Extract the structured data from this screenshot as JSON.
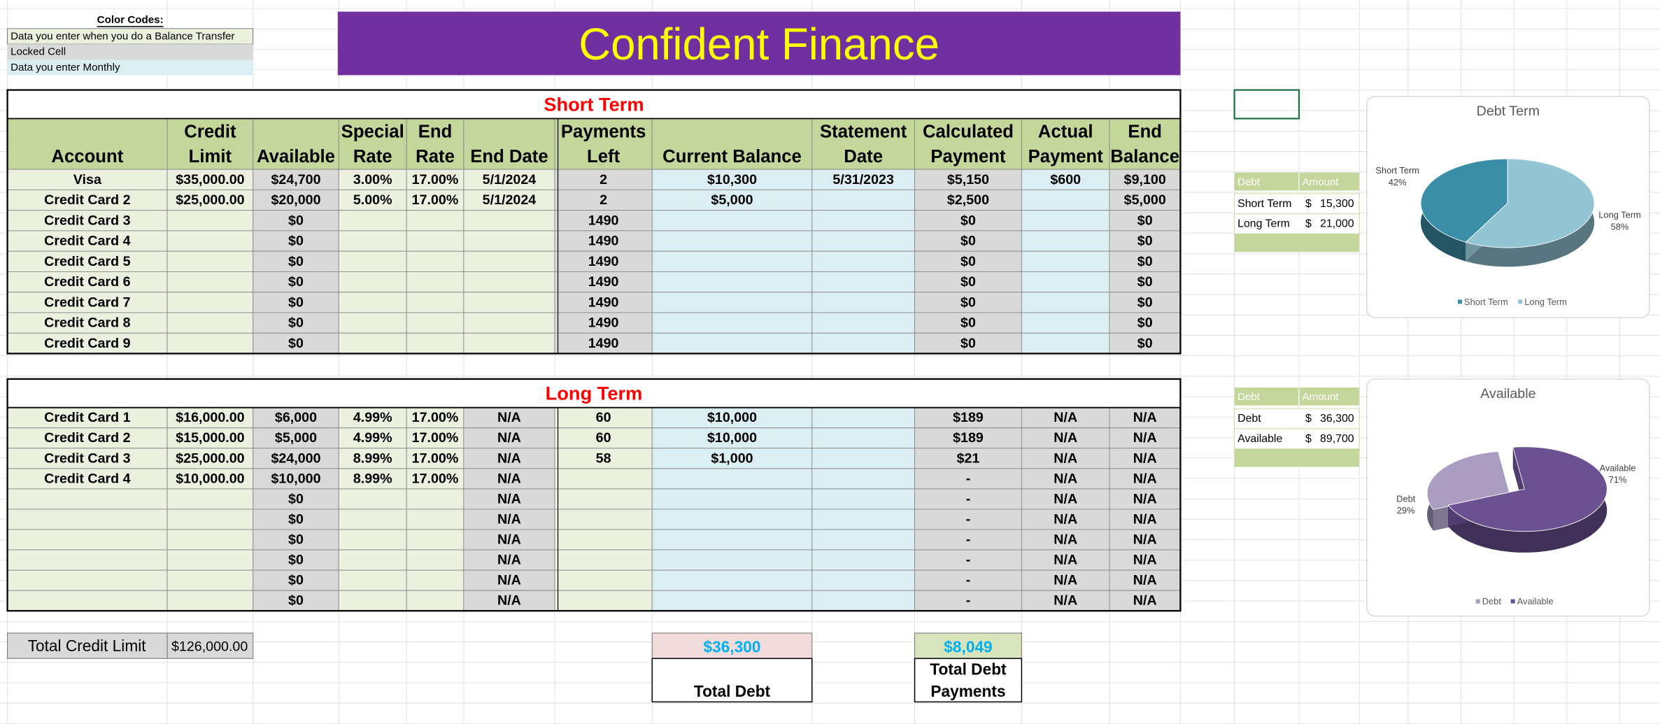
{
  "color_codes": {
    "title": "Color Codes:",
    "items": [
      "Data you enter when you do a Balance Transfer",
      "Locked Cell",
      "Data you enter Monthly"
    ]
  },
  "header": {
    "title": "Confident Finance"
  },
  "short_term": {
    "title": "Short Term",
    "columns": [
      [
        "Account"
      ],
      [
        "Credit",
        "Limit"
      ],
      [
        "Available"
      ],
      [
        "Special",
        "Rate"
      ],
      [
        "End",
        "Rate"
      ],
      [
        "End Date"
      ],
      [
        "Payments",
        "Left"
      ],
      [
        "Current Balance"
      ],
      [
        "Statement",
        "Date"
      ],
      [
        "Calculated",
        "Payment"
      ],
      [
        "Actual",
        "Payment"
      ],
      [
        "End",
        "Balance"
      ]
    ],
    "rows": [
      [
        "Visa",
        "$35,000.00",
        "$24,700",
        "3.00%",
        "17.00%",
        "5/1/2024",
        "2",
        "$10,300",
        "5/31/2023",
        "$5,150",
        "$600",
        "$9,100"
      ],
      [
        "Credit Card 2",
        "$25,000.00",
        "$20,000",
        "5.00%",
        "17.00%",
        "5/1/2024",
        "2",
        "$5,000",
        null,
        "$2,500",
        null,
        "$5,000"
      ],
      [
        "Credit Card 3",
        null,
        "$0",
        null,
        null,
        null,
        "1490",
        null,
        null,
        "$0",
        null,
        "$0"
      ],
      [
        "Credit Card 4",
        null,
        "$0",
        null,
        null,
        null,
        "1490",
        null,
        null,
        "$0",
        null,
        "$0"
      ],
      [
        "Credit Card 5",
        null,
        "$0",
        null,
        null,
        null,
        "1490",
        null,
        null,
        "$0",
        null,
        "$0"
      ],
      [
        "Credit Card 6",
        null,
        "$0",
        null,
        null,
        null,
        "1490",
        null,
        null,
        "$0",
        null,
        "$0"
      ],
      [
        "Credit Card 7",
        null,
        "$0",
        null,
        null,
        null,
        "1490",
        null,
        null,
        "$0",
        null,
        "$0"
      ],
      [
        "Credit Card 8",
        null,
        "$0",
        null,
        null,
        null,
        "1490",
        null,
        null,
        "$0",
        null,
        "$0"
      ],
      [
        "Credit Card 9",
        null,
        "$0",
        null,
        null,
        null,
        "1490",
        null,
        null,
        "$0",
        null,
        "$0"
      ]
    ]
  },
  "long_term": {
    "title": "Long Term",
    "rows": [
      [
        "Credit Card 1",
        "$16,000.00",
        "$6,000",
        "4.99%",
        "17.00%",
        "N/A",
        "60",
        "$10,000",
        null,
        "$189",
        "N/A",
        "N/A"
      ],
      [
        "Credit Card 2",
        "$15,000.00",
        "$5,000",
        "4.99%",
        "17.00%",
        "N/A",
        "60",
        "$10,000",
        null,
        "$189",
        "N/A",
        "N/A"
      ],
      [
        "Credit Card 3",
        "$25,000.00",
        "$24,000",
        "8.99%",
        "17.00%",
        "N/A",
        "58",
        "$1,000",
        null,
        "$21",
        "N/A",
        "N/A"
      ],
      [
        "Credit Card 4",
        "$10,000.00",
        "$10,000",
        "8.99%",
        "17.00%",
        "N/A",
        null,
        null,
        null,
        "-",
        "N/A",
        "N/A"
      ],
      [
        null,
        null,
        "$0",
        null,
        null,
        "N/A",
        null,
        null,
        null,
        "-",
        "N/A",
        "N/A"
      ],
      [
        null,
        null,
        "$0",
        null,
        null,
        "N/A",
        null,
        null,
        null,
        "-",
        "N/A",
        "N/A"
      ],
      [
        null,
        null,
        "$0",
        null,
        null,
        "N/A",
        null,
        null,
        null,
        "-",
        "N/A",
        "N/A"
      ],
      [
        null,
        null,
        "$0",
        null,
        null,
        "N/A",
        null,
        null,
        null,
        "-",
        "N/A",
        "N/A"
      ],
      [
        null,
        null,
        "$0",
        null,
        null,
        "N/A",
        null,
        null,
        null,
        "-",
        "N/A",
        "N/A"
      ],
      [
        null,
        null,
        "$0",
        null,
        null,
        "N/A",
        null,
        null,
        null,
        "-",
        "N/A",
        "N/A"
      ]
    ]
  },
  "totals": {
    "total_credit_limit": {
      "label": "Total Credit Limit",
      "value": "$126,000.00"
    },
    "total_debt": {
      "value": "$36,300",
      "label": [
        "Total Debt"
      ]
    },
    "total_debt_payments": {
      "value": "$8,049",
      "label": [
        "Total Debt",
        "Payments"
      ]
    }
  },
  "summary_tables": [
    {
      "headers": [
        "Debt",
        "Amount"
      ],
      "rows": [
        [
          "Short Term",
          "$",
          "15,300"
        ],
        [
          "Long Term",
          "$",
          "21,000"
        ]
      ]
    },
    {
      "headers": [
        "Debt",
        "Amount"
      ],
      "rows": [
        [
          "Debt",
          "$",
          "36,300"
        ],
        [
          "Available",
          "$",
          "89,700"
        ]
      ]
    }
  ],
  "chart_data": [
    {
      "type": "pie",
      "title": "Debt Term",
      "categories": [
        "Short Term",
        "Long Term"
      ],
      "values": [
        42,
        58
      ],
      "value_labels": [
        "42%",
        "58%"
      ],
      "colors": [
        "#3b8ea8",
        "#93c5d5"
      ],
      "legend": "bottom"
    },
    {
      "type": "pie",
      "title": "Available",
      "categories": [
        "Debt",
        "Available"
      ],
      "values": [
        29,
        71
      ],
      "value_labels": [
        "29%",
        "71%"
      ],
      "colors": [
        "#a99dc2",
        "#6b5192"
      ],
      "legend": "bottom"
    }
  ]
}
